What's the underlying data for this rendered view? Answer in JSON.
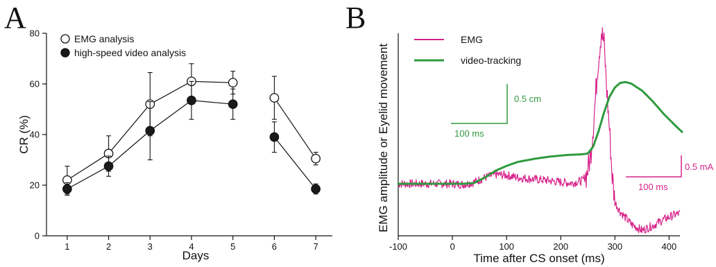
{
  "figure": {
    "panel_a_letter": "A",
    "panel_b_letter": "B"
  },
  "chart_data": [
    {
      "type": "line",
      "panel": "A",
      "title": "",
      "xlabel": "Days",
      "ylabel": "CR (%)",
      "categories": [
        1,
        2,
        3,
        4,
        5,
        6,
        7
      ],
      "xlim": [
        0.5,
        7.4
      ],
      "ylim": [
        0,
        80
      ],
      "yticks": [
        0,
        20,
        40,
        60,
        80
      ],
      "xticks": [
        1,
        2,
        3,
        4,
        5,
        6,
        7
      ],
      "segments_break_after_day": 5,
      "legend_position": "top-left",
      "series": [
        {
          "name": "EMG analysis",
          "marker": "open-circle",
          "color": "#000000",
          "values": [
            22,
            32.5,
            52,
            61,
            60.5,
            54.5,
            30.5
          ],
          "errors": [
            5.5,
            7,
            12.5,
            7,
            4.5,
            8.5,
            2.5
          ]
        },
        {
          "name": "high-speed video analysis",
          "marker": "filled-circle",
          "color": "#1a1a1a",
          "values": [
            18.5,
            27.5,
            41.5,
            53.5,
            52,
            39,
            18.5
          ],
          "errors": [
            2.5,
            4,
            11.5,
            7.5,
            6,
            6,
            2
          ]
        }
      ]
    },
    {
      "type": "line",
      "panel": "B",
      "title": "",
      "xlabel": "Time after CS onset (ms)",
      "ylabel": "EMG amplitude or Eyelid movement",
      "xlim": [
        -100,
        420
      ],
      "xticks": [
        -100,
        0,
        100,
        200,
        300,
        400
      ],
      "legend_position": "top-left",
      "series": [
        {
          "name": "EMG",
          "color": "#d6228a",
          "units": "mA",
          "x": [
            -100,
            -60,
            -20,
            0,
            20,
            40,
            60,
            80,
            100,
            120,
            150,
            180,
            200,
            220,
            240,
            248,
            255,
            262,
            268,
            275,
            280,
            285,
            290,
            295,
            300,
            310,
            330,
            350,
            370,
            390,
            410,
            420
          ],
          "y": [
            0,
            0,
            0,
            0,
            -0.005,
            0.01,
            0.04,
            0.06,
            0.055,
            0.04,
            0.03,
            0.02,
            0.01,
            0.005,
            0.02,
            0.06,
            0.18,
            0.45,
            0.75,
            0.98,
            0.9,
            0.6,
            0.35,
            0.05,
            -0.12,
            -0.18,
            -0.26,
            -0.3,
            -0.27,
            -0.23,
            -0.2,
            -0.19
          ]
        },
        {
          "name": "video-tracking",
          "color": "#2e9a3e",
          "units": "cm",
          "x": [
            -100,
            -60,
            -20,
            0,
            20,
            40,
            60,
            80,
            100,
            120,
            150,
            180,
            210,
            240,
            250,
            260,
            270,
            280,
            290,
            300,
            310,
            320,
            330,
            350,
            370,
            390,
            410,
            425
          ],
          "y": [
            0,
            0,
            0,
            0,
            0,
            0.005,
            0.04,
            0.085,
            0.115,
            0.14,
            0.16,
            0.175,
            0.185,
            0.19,
            0.195,
            0.24,
            0.34,
            0.46,
            0.56,
            0.62,
            0.65,
            0.655,
            0.645,
            0.6,
            0.53,
            0.45,
            0.38,
            0.33
          ]
        }
      ],
      "scale_bars": [
        {
          "label_horizontal": "100 ms",
          "label_vertical": "0.5 cm",
          "color": "#2e9a3e",
          "time_ms": 100,
          "amplitude": 0.5,
          "unit": "cm"
        },
        {
          "label_horizontal": "100 ms",
          "label_vertical": "0.5 mA",
          "color": "#d6228a",
          "time_ms": 100,
          "amplitude": 0.5,
          "unit": "mA"
        }
      ]
    }
  ]
}
